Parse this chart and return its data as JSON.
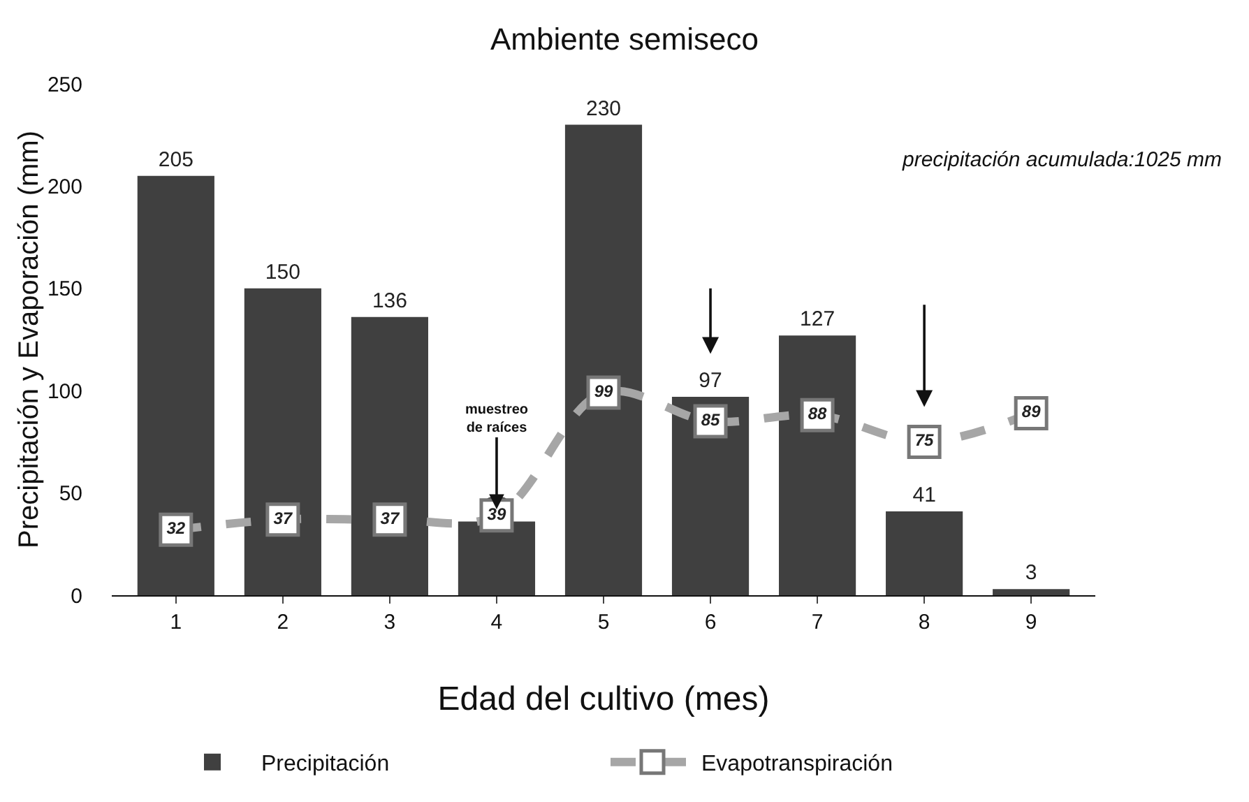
{
  "chart_data": {
    "type": "bar",
    "title": "Ambiente semiseco",
    "xlabel": "Edad del cultivo (mes)",
    "ylabel": "Precipitación y Evaporación (mm)",
    "categories": [
      "1",
      "2",
      "3",
      "4",
      "5",
      "6",
      "7",
      "8",
      "9"
    ],
    "series": [
      {
        "name": "Precipitación",
        "color": "#404040",
        "values": [
          205,
          150,
          136,
          36,
          230,
          97,
          127,
          41,
          3
        ]
      },
      {
        "name": "Evapotranspiración",
        "type": "line",
        "color": "#a6a6a6",
        "marker": "square",
        "line_style": "dashed",
        "values": [
          32,
          37,
          37,
          39,
          99,
          85,
          88,
          75,
          89
        ]
      }
    ],
    "ylim": [
      0,
      250
    ],
    "yticks": [
      0,
      50,
      100,
      150,
      200,
      250
    ],
    "grid": false,
    "legend": "bottom",
    "data_labels": true,
    "annotations": [
      "precipitación acumulada:1025 mm",
      {
        "text": "muestreo de raíces",
        "x": "4",
        "y": 42
      }
    ]
  }
}
